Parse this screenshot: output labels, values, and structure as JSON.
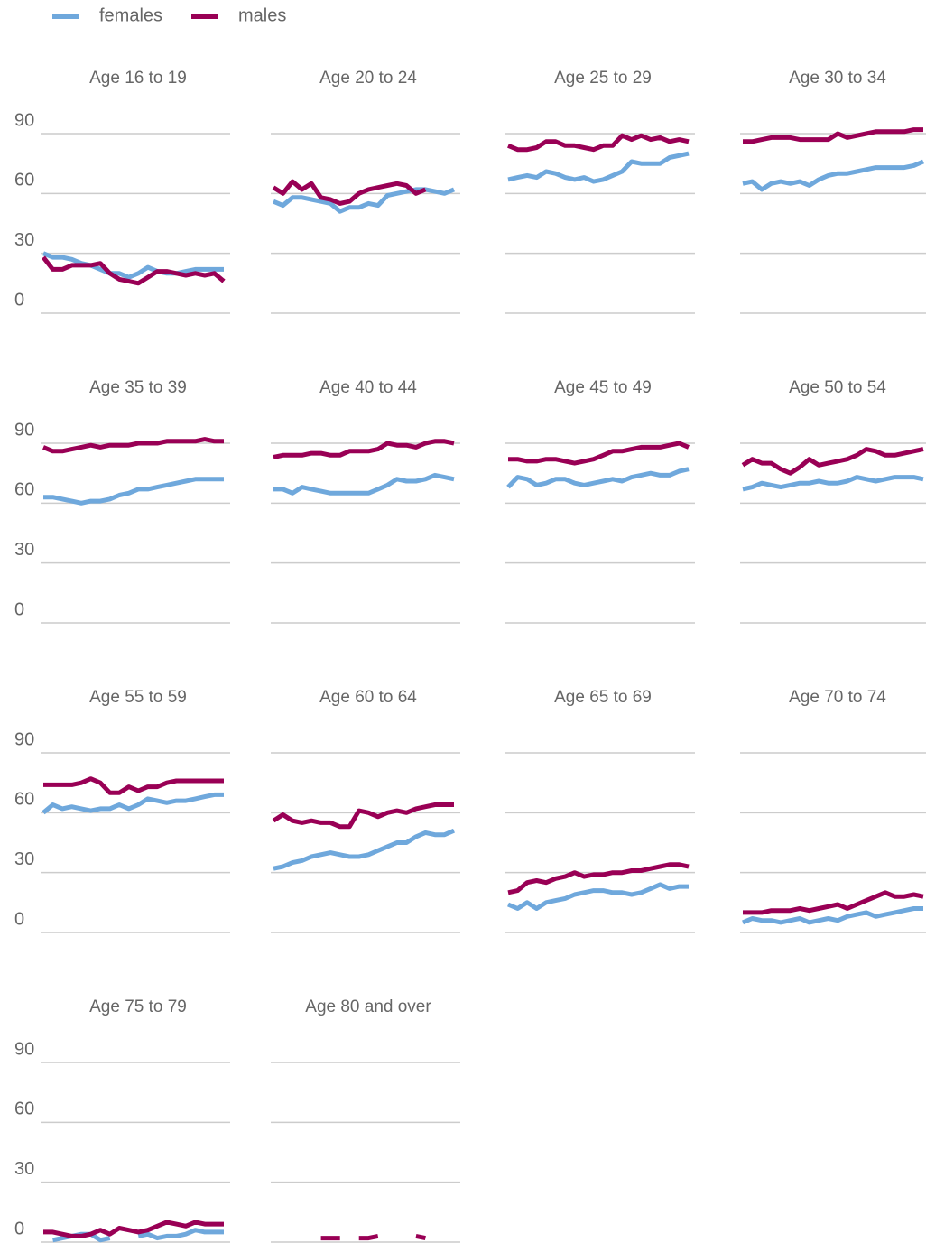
{
  "chart_data": [
    {
      "type": "line",
      "title": "Age 16 to 19",
      "ylim": [
        0,
        90
      ],
      "yticks": [
        0,
        30,
        60,
        90
      ],
      "series": [
        {
          "name": "females",
          "color": "#6fa8dc",
          "values": [
            30,
            28,
            28,
            27,
            25,
            24,
            22,
            20,
            20,
            18,
            20,
            23,
            21,
            20,
            20,
            21,
            22,
            22,
            22,
            22
          ]
        },
        {
          "name": "males",
          "color": "#990055",
          "values": [
            28,
            22,
            22,
            24,
            24,
            24,
            25,
            20,
            17,
            16,
            15,
            18,
            21,
            21,
            20,
            19,
            20,
            19,
            20,
            16
          ]
        }
      ]
    },
    {
      "type": "line",
      "title": "Age 20 to 24",
      "ylim": [
        0,
        90
      ],
      "yticks": [
        0,
        30,
        60,
        90
      ],
      "series": [
        {
          "name": "females",
          "color": "#6fa8dc",
          "values": [
            56,
            54,
            58,
            58,
            57,
            56,
            55,
            51,
            53,
            53,
            55,
            54,
            59,
            60,
            61,
            62,
            62,
            61,
            60,
            62
          ]
        },
        {
          "name": "males",
          "color": "#990055",
          "values": [
            63,
            60,
            66,
            62,
            65,
            58,
            57,
            55,
            56,
            60,
            62,
            63,
            64,
            65,
            64,
            60,
            62,
            null,
            null,
            null
          ]
        }
      ]
    },
    {
      "type": "line",
      "title": "Age 25 to 29",
      "ylim": [
        0,
        90
      ],
      "yticks": [
        0,
        30,
        60,
        90
      ],
      "series": [
        {
          "name": "females",
          "color": "#6fa8dc",
          "values": [
            67,
            68,
            69,
            68,
            71,
            70,
            68,
            67,
            68,
            66,
            67,
            69,
            71,
            76,
            75,
            75,
            75,
            78,
            79,
            80
          ]
        },
        {
          "name": "males",
          "color": "#990055",
          "values": [
            84,
            82,
            82,
            83,
            86,
            86,
            84,
            84,
            83,
            82,
            84,
            84,
            89,
            87,
            89,
            87,
            88,
            86,
            87,
            86
          ]
        }
      ]
    },
    {
      "type": "line",
      "title": "Age 30 to 34",
      "ylim": [
        0,
        90
      ],
      "yticks": [
        0,
        30,
        60,
        90
      ],
      "series": [
        {
          "name": "females",
          "color": "#6fa8dc",
          "values": [
            65,
            66,
            62,
            65,
            66,
            65,
            66,
            64,
            67,
            69,
            70,
            70,
            71,
            72,
            73,
            73,
            73,
            73,
            74,
            76
          ]
        },
        {
          "name": "males",
          "color": "#990055",
          "values": [
            86,
            86,
            87,
            88,
            88,
            88,
            87,
            87,
            87,
            87,
            90,
            88,
            89,
            90,
            91,
            91,
            91,
            91,
            92,
            92
          ]
        }
      ]
    },
    {
      "type": "line",
      "title": "Age 35 to 39",
      "ylim": [
        0,
        90
      ],
      "yticks": [
        0,
        30,
        60,
        90
      ],
      "series": [
        {
          "name": "females",
          "color": "#6fa8dc",
          "values": [
            63,
            63,
            62,
            61,
            60,
            61,
            61,
            62,
            64,
            65,
            67,
            67,
            68,
            69,
            70,
            71,
            72,
            72,
            72,
            72
          ]
        },
        {
          "name": "males",
          "color": "#990055",
          "values": [
            88,
            86,
            86,
            87,
            88,
            89,
            88,
            89,
            89,
            89,
            90,
            90,
            90,
            91,
            91,
            91,
            91,
            92,
            91,
            91
          ]
        }
      ]
    },
    {
      "type": "line",
      "title": "Age 40 to 44",
      "ylim": [
        0,
        90
      ],
      "yticks": [
        0,
        30,
        60,
        90
      ],
      "series": [
        {
          "name": "females",
          "color": "#6fa8dc",
          "values": [
            67,
            67,
            65,
            68,
            67,
            66,
            65,
            65,
            65,
            65,
            65,
            67,
            69,
            72,
            71,
            71,
            72,
            74,
            73,
            72
          ]
        },
        {
          "name": "males",
          "color": "#990055",
          "values": [
            83,
            84,
            84,
            84,
            85,
            85,
            84,
            84,
            86,
            86,
            86,
            87,
            90,
            89,
            89,
            88,
            90,
            91,
            91,
            90
          ]
        }
      ]
    },
    {
      "type": "line",
      "title": "Age 45 to 49",
      "ylim": [
        0,
        90
      ],
      "yticks": [
        0,
        30,
        60,
        90
      ],
      "series": [
        {
          "name": "females",
          "color": "#6fa8dc",
          "values": [
            68,
            73,
            72,
            69,
            70,
            72,
            72,
            70,
            69,
            70,
            71,
            72,
            71,
            73,
            74,
            75,
            74,
            74,
            76,
            77
          ]
        },
        {
          "name": "males",
          "color": "#990055",
          "values": [
            82,
            82,
            81,
            81,
            82,
            82,
            81,
            80,
            81,
            82,
            84,
            86,
            86,
            87,
            88,
            88,
            88,
            89,
            90,
            88
          ]
        }
      ]
    },
    {
      "type": "line",
      "title": "Age 50 to 54",
      "ylim": [
        0,
        90
      ],
      "yticks": [
        0,
        30,
        60,
        90
      ],
      "series": [
        {
          "name": "females",
          "color": "#6fa8dc",
          "values": [
            67,
            68,
            70,
            69,
            68,
            69,
            70,
            70,
            71,
            70,
            70,
            71,
            73,
            72,
            71,
            72,
            73,
            73,
            73,
            72
          ]
        },
        {
          "name": "males",
          "color": "#990055",
          "values": [
            79,
            82,
            80,
            80,
            77,
            75,
            78,
            82,
            79,
            80,
            81,
            82,
            84,
            87,
            86,
            84,
            84,
            85,
            86,
            87
          ]
        }
      ]
    },
    {
      "type": "line",
      "title": "Age 55 to 59",
      "ylim": [
        0,
        90
      ],
      "yticks": [
        0,
        30,
        60,
        90
      ],
      "series": [
        {
          "name": "females",
          "color": "#6fa8dc",
          "values": [
            60,
            64,
            62,
            63,
            62,
            61,
            62,
            62,
            64,
            62,
            64,
            67,
            66,
            65,
            66,
            66,
            67,
            68,
            69,
            69
          ]
        },
        {
          "name": "males",
          "color": "#990055",
          "values": [
            74,
            74,
            74,
            74,
            75,
            77,
            75,
            70,
            70,
            73,
            71,
            73,
            73,
            75,
            76,
            76,
            76,
            76,
            76,
            76
          ]
        }
      ]
    },
    {
      "type": "line",
      "title": "Age 60 to 64",
      "ylim": [
        0,
        90
      ],
      "yticks": [
        0,
        30,
        60,
        90
      ],
      "series": [
        {
          "name": "females",
          "color": "#6fa8dc",
          "values": [
            32,
            33,
            35,
            36,
            38,
            39,
            40,
            39,
            38,
            38,
            39,
            41,
            43,
            45,
            45,
            48,
            50,
            49,
            49,
            51
          ]
        },
        {
          "name": "males",
          "color": "#990055",
          "values": [
            56,
            59,
            56,
            55,
            56,
            55,
            55,
            53,
            53,
            61,
            60,
            58,
            60,
            61,
            60,
            62,
            63,
            64,
            64,
            64
          ]
        }
      ]
    },
    {
      "type": "line",
      "title": "Age 65 to 69",
      "ylim": [
        0,
        90
      ],
      "yticks": [
        0,
        30,
        60,
        90
      ],
      "series": [
        {
          "name": "females",
          "color": "#6fa8dc",
          "values": [
            14,
            12,
            15,
            12,
            15,
            16,
            17,
            19,
            20,
            21,
            21,
            20,
            20,
            19,
            20,
            22,
            24,
            22,
            23,
            23
          ]
        },
        {
          "name": "males",
          "color": "#990055",
          "values": [
            20,
            21,
            25,
            26,
            25,
            27,
            28,
            30,
            28,
            29,
            29,
            30,
            30,
            31,
            31,
            32,
            33,
            34,
            34,
            33
          ]
        }
      ]
    },
    {
      "type": "line",
      "title": "Age 70 to 74",
      "ylim": [
        0,
        90
      ],
      "yticks": [
        0,
        30,
        60,
        90
      ],
      "series": [
        {
          "name": "females",
          "color": "#6fa8dc",
          "values": [
            5,
            7,
            6,
            6,
            5,
            6,
            7,
            5,
            6,
            7,
            6,
            8,
            9,
            10,
            8,
            9,
            10,
            11,
            12,
            12
          ]
        },
        {
          "name": "males",
          "color": "#990055",
          "values": [
            10,
            10,
            10,
            11,
            11,
            11,
            12,
            11,
            12,
            13,
            14,
            12,
            14,
            16,
            18,
            20,
            18,
            18,
            19,
            18
          ]
        }
      ]
    },
    {
      "type": "line",
      "title": "Age 75 to 79",
      "ylim": [
        0,
        90
      ],
      "yticks": [
        0,
        30,
        60,
        90
      ],
      "series": [
        {
          "name": "females",
          "color": "#6fa8dc",
          "values": [
            null,
            1,
            2,
            3,
            4,
            4,
            1,
            2,
            null,
            null,
            3,
            4,
            2,
            3,
            3,
            4,
            6,
            5,
            5,
            5
          ]
        },
        {
          "name": "males",
          "color": "#990055",
          "values": [
            5,
            5,
            4,
            3,
            3,
            4,
            6,
            4,
            7,
            6,
            5,
            6,
            8,
            10,
            9,
            8,
            10,
            9,
            9,
            9
          ]
        }
      ]
    },
    {
      "type": "line",
      "title": "Age 80 and over",
      "ylim": [
        0,
        90
      ],
      "yticks": [
        0,
        30,
        60,
        90
      ],
      "series": [
        {
          "name": "females",
          "color": "#6fa8dc",
          "values": [
            null,
            null,
            null,
            null,
            null,
            null,
            null,
            null,
            null,
            null,
            null,
            null,
            null,
            null,
            null,
            null,
            null,
            null,
            null,
            null
          ]
        },
        {
          "name": "males",
          "color": "#990055",
          "values": [
            null,
            null,
            null,
            null,
            null,
            2,
            2,
            2,
            null,
            2,
            2,
            3,
            null,
            null,
            null,
            3,
            2,
            null,
            null,
            null
          ]
        }
      ]
    }
  ]
}
